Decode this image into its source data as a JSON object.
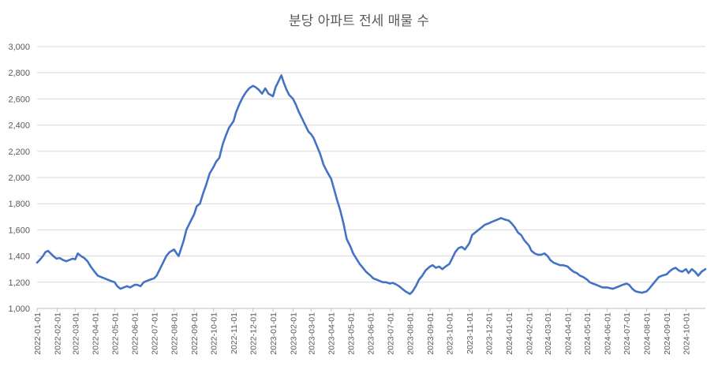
{
  "chart_data": {
    "type": "line",
    "title": "분당 아파트 전세 매물 수",
    "xlabel": "",
    "ylabel": "",
    "ylim": [
      1000,
      3000
    ],
    "yticks": [
      1000,
      1200,
      1400,
      1600,
      1800,
      2000,
      2200,
      2400,
      2600,
      2800,
      3000
    ],
    "ytick_labels": [
      "1,000",
      "1,200",
      "1,400",
      "1,600",
      "1,800",
      "2,000",
      "2,200",
      "2,400",
      "2,600",
      "2,800",
      "3,000"
    ],
    "xlim": [
      "2022-01-01",
      "2024-10-31"
    ],
    "xtick_labels": [
      "2022-01-01",
      "2022-02-01",
      "2022-03-01",
      "2022-04-01",
      "2022-05-01",
      "2022-06-01",
      "2022-07-01",
      "2022-08-01",
      "2022-09-01",
      "2022-10-01",
      "2022-11-01",
      "2022-12-01",
      "2023-01-01",
      "2023-02-01",
      "2023-03-01",
      "2023-04-01",
      "2023-05-01",
      "2023-06-01",
      "2023-07-01",
      "2023-08-01",
      "2023-09-01",
      "2023-10-01",
      "2023-11-01",
      "2023-12-01",
      "2024-01-01",
      "2024-02-01",
      "2024-03-01",
      "2024-04-01",
      "2024-05-01",
      "2024-06-01",
      "2024-07-01",
      "2024-08-01",
      "2024-09-01",
      "2024-10-01"
    ],
    "grid": true,
    "legend": "none",
    "series": [
      {
        "color": "#4472c4",
        "points": [
          [
            "2022-01-01",
            1350
          ],
          [
            "2022-01-05",
            1370
          ],
          [
            "2022-01-10",
            1400
          ],
          [
            "2022-01-14",
            1430
          ],
          [
            "2022-01-18",
            1440
          ],
          [
            "2022-01-22",
            1420
          ],
          [
            "2022-01-26",
            1400
          ],
          [
            "2022-01-31",
            1380
          ],
          [
            "2022-02-05",
            1385
          ],
          [
            "2022-02-10",
            1370
          ],
          [
            "2022-02-15",
            1360
          ],
          [
            "2022-02-20",
            1370
          ],
          [
            "2022-02-25",
            1380
          ],
          [
            "2022-03-01",
            1375
          ],
          [
            "2022-03-05",
            1420
          ],
          [
            "2022-03-10",
            1400
          ],
          [
            "2022-03-15",
            1385
          ],
          [
            "2022-03-20",
            1360
          ],
          [
            "2022-03-25",
            1320
          ],
          [
            "2022-03-31",
            1280
          ],
          [
            "2022-04-05",
            1250
          ],
          [
            "2022-04-10",
            1240
          ],
          [
            "2022-04-15",
            1230
          ],
          [
            "2022-04-20",
            1220
          ],
          [
            "2022-04-25",
            1210
          ],
          [
            "2022-05-01",
            1200
          ],
          [
            "2022-05-05",
            1170
          ],
          [
            "2022-05-10",
            1150
          ],
          [
            "2022-05-15",
            1160
          ],
          [
            "2022-05-20",
            1170
          ],
          [
            "2022-05-25",
            1160
          ],
          [
            "2022-06-01",
            1180
          ],
          [
            "2022-06-05",
            1180
          ],
          [
            "2022-06-10",
            1170
          ],
          [
            "2022-06-15",
            1200
          ],
          [
            "2022-06-20",
            1210
          ],
          [
            "2022-06-25",
            1220
          ],
          [
            "2022-07-01",
            1230
          ],
          [
            "2022-07-05",
            1250
          ],
          [
            "2022-07-10",
            1300
          ],
          [
            "2022-07-15",
            1350
          ],
          [
            "2022-07-20",
            1400
          ],
          [
            "2022-07-25",
            1430
          ],
          [
            "2022-08-01",
            1450
          ],
          [
            "2022-08-05",
            1420
          ],
          [
            "2022-08-08",
            1400
          ],
          [
            "2022-08-12",
            1460
          ],
          [
            "2022-08-16",
            1520
          ],
          [
            "2022-08-20",
            1600
          ],
          [
            "2022-08-25",
            1650
          ],
          [
            "2022-09-01",
            1720
          ],
          [
            "2022-09-05",
            1780
          ],
          [
            "2022-09-10",
            1800
          ],
          [
            "2022-09-15",
            1880
          ],
          [
            "2022-09-20",
            1950
          ],
          [
            "2022-09-25",
            2030
          ],
          [
            "2022-10-01",
            2080
          ],
          [
            "2022-10-05",
            2120
          ],
          [
            "2022-10-10",
            2150
          ],
          [
            "2022-10-15",
            2250
          ],
          [
            "2022-10-20",
            2320
          ],
          [
            "2022-10-25",
            2380
          ],
          [
            "2022-11-01",
            2430
          ],
          [
            "2022-11-05",
            2500
          ],
          [
            "2022-11-10",
            2560
          ],
          [
            "2022-11-15",
            2610
          ],
          [
            "2022-11-20",
            2650
          ],
          [
            "2022-11-25",
            2680
          ],
          [
            "2022-12-01",
            2700
          ],
          [
            "2022-12-05",
            2690
          ],
          [
            "2022-12-10",
            2670
          ],
          [
            "2022-12-15",
            2640
          ],
          [
            "2022-12-20",
            2680
          ],
          [
            "2022-12-25",
            2640
          ],
          [
            "2023-01-01",
            2620
          ],
          [
            "2023-01-05",
            2690
          ],
          [
            "2023-01-10",
            2740
          ],
          [
            "2023-01-14",
            2780
          ],
          [
            "2023-01-18",
            2720
          ],
          [
            "2023-01-22",
            2670
          ],
          [
            "2023-01-26",
            2630
          ],
          [
            "2023-02-01",
            2600
          ],
          [
            "2023-02-05",
            2560
          ],
          [
            "2023-02-10",
            2500
          ],
          [
            "2023-02-15",
            2450
          ],
          [
            "2023-02-20",
            2400
          ],
          [
            "2023-02-25",
            2350
          ],
          [
            "2023-03-01",
            2330
          ],
          [
            "2023-03-05",
            2300
          ],
          [
            "2023-03-10",
            2240
          ],
          [
            "2023-03-15",
            2180
          ],
          [
            "2023-03-20",
            2100
          ],
          [
            "2023-03-25",
            2050
          ],
          [
            "2023-04-01",
            1990
          ],
          [
            "2023-04-05",
            1920
          ],
          [
            "2023-04-10",
            1830
          ],
          [
            "2023-04-15",
            1750
          ],
          [
            "2023-04-20",
            1650
          ],
          [
            "2023-04-25",
            1530
          ],
          [
            "2023-05-01",
            1470
          ],
          [
            "2023-05-05",
            1420
          ],
          [
            "2023-05-10",
            1380
          ],
          [
            "2023-05-15",
            1340
          ],
          [
            "2023-05-20",
            1310
          ],
          [
            "2023-05-25",
            1280
          ],
          [
            "2023-06-01",
            1250
          ],
          [
            "2023-06-05",
            1230
          ],
          [
            "2023-06-10",
            1220
          ],
          [
            "2023-06-15",
            1210
          ],
          [
            "2023-06-20",
            1200
          ],
          [
            "2023-06-25",
            1200
          ],
          [
            "2023-07-01",
            1190
          ],
          [
            "2023-07-05",
            1195
          ],
          [
            "2023-07-10",
            1185
          ],
          [
            "2023-07-15",
            1170
          ],
          [
            "2023-07-20",
            1150
          ],
          [
            "2023-07-25",
            1130
          ],
          [
            "2023-08-01",
            1110
          ],
          [
            "2023-08-05",
            1130
          ],
          [
            "2023-08-10",
            1170
          ],
          [
            "2023-08-15",
            1220
          ],
          [
            "2023-08-20",
            1250
          ],
          [
            "2023-08-25",
            1290
          ],
          [
            "2023-09-01",
            1320
          ],
          [
            "2023-09-05",
            1330
          ],
          [
            "2023-09-10",
            1310
          ],
          [
            "2023-09-15",
            1320
          ],
          [
            "2023-09-20",
            1300
          ],
          [
            "2023-09-25",
            1320
          ],
          [
            "2023-10-01",
            1340
          ],
          [
            "2023-10-05",
            1380
          ],
          [
            "2023-10-10",
            1430
          ],
          [
            "2023-10-15",
            1460
          ],
          [
            "2023-10-20",
            1470
          ],
          [
            "2023-10-25",
            1450
          ],
          [
            "2023-11-01",
            1500
          ],
          [
            "2023-11-05",
            1560
          ],
          [
            "2023-11-10",
            1580
          ],
          [
            "2023-11-15",
            1600
          ],
          [
            "2023-11-20",
            1620
          ],
          [
            "2023-11-25",
            1640
          ],
          [
            "2023-12-01",
            1650
          ],
          [
            "2023-12-05",
            1660
          ],
          [
            "2023-12-10",
            1670
          ],
          [
            "2023-12-15",
            1680
          ],
          [
            "2023-12-20",
            1690
          ],
          [
            "2023-12-25",
            1680
          ],
          [
            "2024-01-01",
            1670
          ],
          [
            "2024-01-05",
            1650
          ],
          [
            "2024-01-10",
            1620
          ],
          [
            "2024-01-15",
            1580
          ],
          [
            "2024-01-20",
            1560
          ],
          [
            "2024-01-25",
            1520
          ],
          [
            "2024-02-01",
            1480
          ],
          [
            "2024-02-05",
            1440
          ],
          [
            "2024-02-10",
            1420
          ],
          [
            "2024-02-15",
            1410
          ],
          [
            "2024-02-20",
            1410
          ],
          [
            "2024-02-25",
            1420
          ],
          [
            "2024-03-01",
            1400
          ],
          [
            "2024-03-05",
            1370
          ],
          [
            "2024-03-10",
            1350
          ],
          [
            "2024-03-15",
            1340
          ],
          [
            "2024-03-20",
            1330
          ],
          [
            "2024-03-25",
            1330
          ],
          [
            "2024-04-01",
            1320
          ],
          [
            "2024-04-05",
            1300
          ],
          [
            "2024-04-10",
            1280
          ],
          [
            "2024-04-15",
            1270
          ],
          [
            "2024-04-20",
            1250
          ],
          [
            "2024-04-25",
            1240
          ],
          [
            "2024-05-01",
            1220
          ],
          [
            "2024-05-05",
            1200
          ],
          [
            "2024-05-10",
            1190
          ],
          [
            "2024-05-15",
            1180
          ],
          [
            "2024-05-20",
            1170
          ],
          [
            "2024-05-25",
            1160
          ],
          [
            "2024-06-01",
            1160
          ],
          [
            "2024-06-05",
            1155
          ],
          [
            "2024-06-10",
            1150
          ],
          [
            "2024-06-15",
            1160
          ],
          [
            "2024-06-20",
            1170
          ],
          [
            "2024-06-25",
            1180
          ],
          [
            "2024-07-01",
            1190
          ],
          [
            "2024-07-05",
            1180
          ],
          [
            "2024-07-10",
            1150
          ],
          [
            "2024-07-15",
            1130
          ],
          [
            "2024-07-20",
            1125
          ],
          [
            "2024-07-25",
            1120
          ],
          [
            "2024-08-01",
            1130
          ],
          [
            "2024-08-05",
            1150
          ],
          [
            "2024-08-10",
            1180
          ],
          [
            "2024-08-15",
            1210
          ],
          [
            "2024-08-20",
            1240
          ],
          [
            "2024-08-25",
            1250
          ],
          [
            "2024-09-01",
            1260
          ],
          [
            "2024-09-05",
            1280
          ],
          [
            "2024-09-10",
            1300
          ],
          [
            "2024-09-15",
            1310
          ],
          [
            "2024-09-20",
            1290
          ],
          [
            "2024-09-25",
            1280
          ],
          [
            "2024-10-01",
            1300
          ],
          [
            "2024-10-05",
            1270
          ],
          [
            "2024-10-10",
            1300
          ],
          [
            "2024-10-15",
            1280
          ],
          [
            "2024-10-20",
            1250
          ],
          [
            "2024-10-25",
            1280
          ],
          [
            "2024-10-31",
            1300
          ]
        ]
      }
    ]
  }
}
